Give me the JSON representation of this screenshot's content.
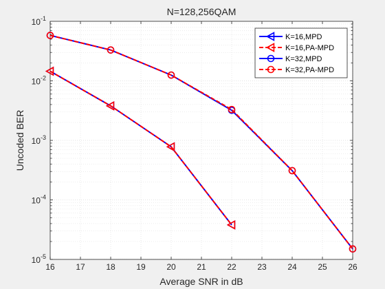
{
  "chart_data": {
    "type": "line",
    "title": "N=128,256QAM",
    "xlabel": "Average SNR in dB",
    "ylabel": "Uncoded BER",
    "xlim": [
      16,
      26
    ],
    "ylim": [
      1e-05,
      0.1
    ],
    "yscale": "log",
    "grid": true,
    "legend_position": "top-right",
    "x_ticks": [
      16,
      17,
      18,
      19,
      20,
      21,
      22,
      23,
      24,
      25,
      26
    ],
    "y_ticks": [
      {
        "value": 1e-05,
        "base": "10",
        "exp": "-5"
      },
      {
        "value": 0.0001,
        "base": "10",
        "exp": "-4"
      },
      {
        "value": 0.001,
        "base": "10",
        "exp": "-3"
      },
      {
        "value": 0.01,
        "base": "10",
        "exp": "-2"
      },
      {
        "value": 0.1,
        "base": "10",
        "exp": "-1"
      }
    ],
    "series": [
      {
        "name": "K=16,MPD",
        "color": "#0000ff",
        "line_style": "solid",
        "marker": "triangle-left",
        "x": [
          16,
          18,
          20,
          22
        ],
        "y": [
          0.0145,
          0.0038,
          0.00078,
          3.8e-05
        ]
      },
      {
        "name": "K=16,PA-MPD",
        "color": "#ff0000",
        "line_style": "dashed",
        "marker": "triangle-left",
        "x": [
          16,
          18,
          20,
          22
        ],
        "y": [
          0.0145,
          0.0038,
          0.00078,
          3.8e-05
        ]
      },
      {
        "name": "K=32,MPD",
        "color": "#0000ff",
        "line_style": "solid",
        "marker": "circle",
        "x": [
          16,
          18,
          20,
          22,
          24,
          26
        ],
        "y": [
          0.058,
          0.033,
          0.0125,
          0.0032,
          0.00031,
          1.5e-05
        ]
      },
      {
        "name": "K=32,PA-MPD",
        "color": "#ff0000",
        "line_style": "dashed",
        "marker": "circle",
        "x": [
          16,
          18,
          20,
          22,
          24,
          26
        ],
        "y": [
          0.058,
          0.033,
          0.0125,
          0.0033,
          0.00031,
          1.5e-05
        ]
      }
    ]
  }
}
